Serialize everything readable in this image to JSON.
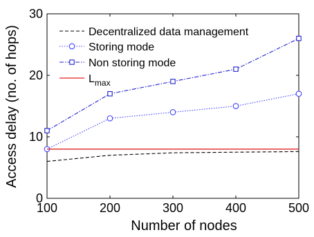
{
  "chart_data": {
    "type": "line",
    "title": "",
    "xlabel": "Number of nodes",
    "ylabel": "Access delay (no. of hops)",
    "x": [
      100,
      200,
      300,
      400,
      500
    ],
    "xlim": [
      100,
      500
    ],
    "ylim": [
      0,
      30
    ],
    "xticks": [
      "100",
      "200",
      "300",
      "400",
      "500"
    ],
    "yticks": [
      "0",
      "10",
      "20",
      "30"
    ],
    "grid": false,
    "legend_position": "top-left",
    "series": [
      {
        "name": "Decentralized data management",
        "values": [
          6,
          7,
          7.4,
          7.5,
          7.6
        ],
        "color": "#000000",
        "style": "dashed",
        "marker": "none"
      },
      {
        "name": "Storing mode",
        "values": [
          8,
          13,
          14,
          15,
          17
        ],
        "color": "#4040ff",
        "style": "dotted",
        "marker": "circle"
      },
      {
        "name": "Non storing mode",
        "values": [
          11,
          17,
          19,
          21,
          26
        ],
        "color": "#2020d0",
        "style": "dashdot",
        "marker": "square"
      },
      {
        "name": "L",
        "name_subscript": "max",
        "values": [
          8,
          8,
          8,
          8,
          8
        ],
        "color": "#e02020",
        "style": "solid",
        "marker": "none"
      }
    ]
  }
}
